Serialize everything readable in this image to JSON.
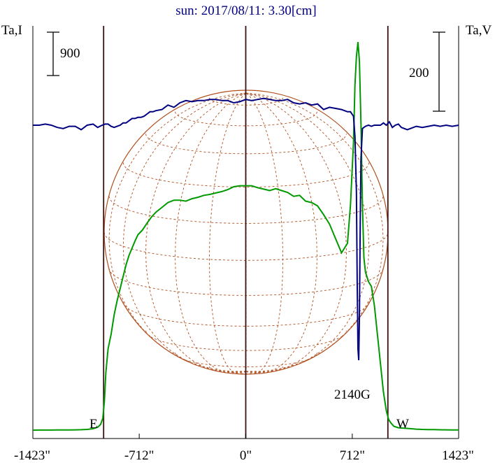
{
  "chart_data": {
    "type": "line",
    "title": "sun: 2017/08/11: 3.30[cm]",
    "left_axis_label": "Ta,I",
    "right_axis_label": "Ta,V",
    "x_ticks": [
      "-1423\"",
      "-712\"",
      "0\"",
      "712\"",
      "1423\""
    ],
    "x_tick_values": [
      -1423,
      -712,
      0,
      712,
      1423
    ],
    "xlim": [
      -1423,
      1423
    ],
    "scale_bar_left": "900",
    "scale_bar_right": "200",
    "limb_labels": {
      "east": "E",
      "west": "W"
    },
    "limb_positions": [
      -950,
      950
    ],
    "annotation": {
      "text": "2140G",
      "x": 750
    },
    "colors": {
      "I": "#009900",
      "V": "#000080",
      "grid": "#b05020",
      "axes": "#000000",
      "title": "#000080"
    },
    "series": [
      {
        "x": [
          -1423,
          -1380,
          -1340,
          -1300,
          -1260,
          -1220,
          -1180,
          -1140,
          -1100,
          -1060,
          -1020,
          -990,
          -970,
          -955,
          -945,
          -935,
          -920,
          -900,
          -880,
          -860,
          -840,
          -820,
          -800,
          -780,
          -760,
          -740,
          -720,
          -690,
          -660,
          -630,
          -600,
          -560,
          -520,
          -480,
          -440,
          -400,
          -360,
          -320,
          -280,
          -240,
          -200,
          -160,
          -120,
          -80,
          -40,
          0,
          40,
          80,
          120,
          160,
          200,
          240,
          280,
          320,
          360,
          400,
          440,
          480,
          520,
          560,
          600,
          640,
          680,
          700,
          720,
          730,
          740,
          750,
          760,
          770,
          780,
          790,
          800,
          820,
          840,
          860,
          880,
          900,
          920,
          940,
          955,
          970,
          990,
          1020,
          1060,
          1100,
          1140,
          1180,
          1220,
          1260,
          1300,
          1340,
          1380,
          1423
        ],
        "values": [
          0,
          0.12,
          0.18,
          0.2,
          0.25,
          0.3,
          0.4,
          0.6,
          0.9,
          1.5,
          3,
          6,
          12,
          25,
          60,
          120,
          170,
          200,
          240,
          270,
          295,
          320,
          345,
          365,
          380,
          395,
          408,
          418,
          432,
          445,
          455,
          465,
          475,
          480,
          480,
          478,
          483,
          486,
          490,
          492,
          495,
          498,
          502,
          508,
          510,
          510,
          510,
          506,
          503,
          500,
          504,
          500,
          496,
          488,
          490,
          478,
          475,
          468,
          450,
          430,
          400,
          370,
          390,
          470,
          600,
          720,
          780,
          810,
          770,
          640,
          470,
          360,
          330,
          310,
          300,
          260,
          200,
          140,
          80,
          40,
          22,
          15,
          8,
          5,
          4,
          3,
          2,
          1.5,
          1.2,
          1,
          0.8,
          0.6,
          0.5,
          0.3
        ]
      },
      {
        "x": [
          -1423,
          -1380,
          -1340,
          -1300,
          -1260,
          -1220,
          -1180,
          -1140,
          -1100,
          -1060,
          -1020,
          -990,
          -960,
          -940,
          -920,
          -900,
          -880,
          -860,
          -840,
          -820,
          -800,
          -780,
          -760,
          -740,
          -720,
          -700,
          -680,
          -660,
          -640,
          -620,
          -600,
          -560,
          -520,
          -480,
          -440,
          -400,
          -360,
          -320,
          -280,
          -240,
          -200,
          -160,
          -120,
          -80,
          -40,
          0,
          40,
          80,
          120,
          160,
          200,
          240,
          280,
          320,
          360,
          400,
          440,
          480,
          520,
          560,
          600,
          640,
          660,
          680,
          700,
          710,
          720,
          730,
          740,
          745,
          750,
          755,
          760,
          765,
          770,
          780,
          790,
          800,
          820,
          840,
          860,
          880,
          900,
          920,
          940,
          960,
          980,
          1000,
          1020,
          1040,
          1060,
          1080,
          1100,
          1140,
          1180,
          1220,
          1260,
          1300,
          1340,
          1380,
          1423
        ],
        "values": [
          0,
          0,
          1,
          0,
          -2,
          -3,
          -1,
          -1,
          -4,
          0,
          1,
          -2,
          0,
          1,
          1,
          -1,
          -2,
          -1,
          0,
          2,
          2,
          4,
          6,
          6,
          7,
          7,
          8,
          10,
          12,
          12,
          13,
          14,
          18,
          16,
          20,
          22,
          21,
          22,
          22,
          23,
          23,
          22,
          22,
          20,
          21,
          23,
          22,
          23,
          24,
          23,
          22,
          22,
          23,
          20,
          19,
          20,
          18,
          19,
          14,
          16,
          15,
          14,
          13,
          12,
          12,
          10,
          8,
          -10,
          -60,
          -140,
          -200,
          -210,
          -170,
          -90,
          -30,
          -3,
          -2,
          -1,
          0,
          -1,
          0,
          0,
          0,
          2,
          0,
          3,
          -2,
          0,
          1,
          -2,
          -3,
          -4,
          -3,
          -1,
          -2,
          -1,
          0,
          -1,
          0,
          -1,
          0
        ]
      }
    ]
  }
}
